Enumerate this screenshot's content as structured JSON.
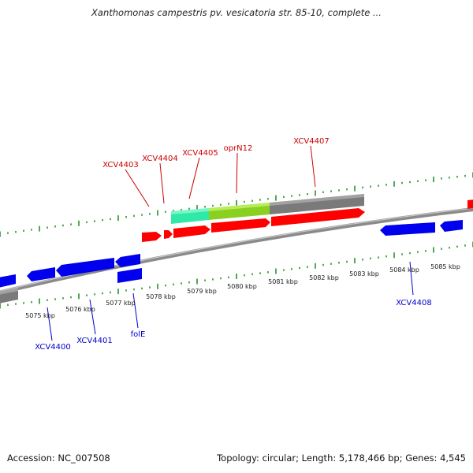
{
  "title": "Xanthomonas campestris pv. vesicatoria str. 85-10, complete ...",
  "footer": {
    "accession": "Accession: NC_007508",
    "stats": "Topology: circular; Length: 5,178,466 bp; Genes: 4,545"
  },
  "colors": {
    "forward_gene": "#ff0000",
    "reverse_gene": "#0000ff",
    "forward_label": "#cc0000",
    "reverse_label": "#0000cc",
    "tick": "#1a8a1a",
    "backbone": "#8a8a8a",
    "cds_segment_1": "#30e8a8",
    "cds_segment_2": "#8ad020",
    "cds_segment_3": "#7a7a7a"
  },
  "ruler_labels": [
    "5075 kbp",
    "5076 kbp",
    "5077 kbp",
    "5078 kbp",
    "5079 kbp",
    "5080 kbp",
    "5081 kbp",
    "5082 kbp",
    "5083 kbp",
    "5084 kbp",
    "5085 kbp"
  ],
  "forward_gene_labels": [
    "XCV4403",
    "XCV4404",
    "XCV4405",
    "oprN12",
    "XCV4407"
  ],
  "reverse_gene_labels": [
    "XCV4400",
    "XCV4401",
    "folE",
    "XCV4408"
  ]
}
